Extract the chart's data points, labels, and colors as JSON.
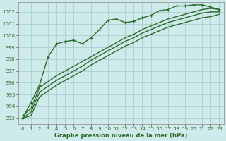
{
  "background_color": "#ceeaea",
  "grid_color": "#aacfcf",
  "line_color": "#2d6b2d",
  "xlabel": "Graphe pression niveau de la mer (hPa)",
  "ylim": [
    992.5,
    1002.8
  ],
  "xlim": [
    -0.5,
    23.5
  ],
  "yticks": [
    993,
    994,
    995,
    996,
    997,
    998,
    999,
    1000,
    1001,
    1002
  ],
  "xticks": [
    0,
    1,
    2,
    3,
    4,
    5,
    6,
    7,
    8,
    9,
    10,
    11,
    12,
    13,
    14,
    15,
    16,
    17,
    18,
    19,
    20,
    21,
    22,
    23
  ],
  "series": [
    {
      "x": [
        0,
        1,
        2,
        3,
        4,
        5,
        6,
        7,
        8,
        9,
        10,
        11,
        12,
        13,
        14,
        15,
        16,
        17,
        18,
        19,
        20,
        21,
        22,
        23
      ],
      "y": [
        993.0,
        994.3,
        995.8,
        998.2,
        999.3,
        999.5,
        999.6,
        999.3,
        999.8,
        1000.5,
        1001.3,
        1001.4,
        1001.1,
        1001.2,
        1001.5,
        1001.7,
        1002.1,
        1002.2,
        1002.5,
        1002.5,
        1002.6,
        1002.6,
        1002.4,
        1002.2
      ],
      "marker": "+",
      "linestyle": "-",
      "linewidth": 1.0,
      "markersize": 3.5
    },
    {
      "x": [
        0,
        1,
        2,
        3,
        4,
        5,
        6,
        7,
        8,
        9,
        10,
        11,
        12,
        13,
        14,
        15,
        16,
        17,
        18,
        19,
        20,
        21,
        22,
        23
      ],
      "y": [
        993.2,
        993.8,
        995.6,
        996.1,
        996.6,
        997.0,
        997.4,
        997.8,
        998.2,
        998.6,
        999.0,
        999.4,
        999.8,
        1000.1,
        1000.5,
        1000.8,
        1001.1,
        1001.4,
        1001.6,
        1001.8,
        1002.0,
        1002.2,
        1002.3,
        1002.2
      ],
      "marker": null,
      "linestyle": "-",
      "linewidth": 1.0,
      "markersize": 0
    },
    {
      "x": [
        0,
        1,
        2,
        3,
        4,
        5,
        6,
        7,
        8,
        9,
        10,
        11,
        12,
        13,
        14,
        15,
        16,
        17,
        18,
        19,
        20,
        21,
        22,
        23
      ],
      "y": [
        993.0,
        993.5,
        995.2,
        995.7,
        996.2,
        996.6,
        997.0,
        997.4,
        997.9,
        998.3,
        998.7,
        999.1,
        999.5,
        999.8,
        1000.2,
        1000.5,
        1000.8,
        1001.1,
        1001.3,
        1001.5,
        1001.7,
        1001.9,
        1002.0,
        1002.0
      ],
      "marker": null,
      "linestyle": "-",
      "linewidth": 1.0,
      "markersize": 0
    },
    {
      "x": [
        0,
        1,
        2,
        3,
        4,
        5,
        6,
        7,
        8,
        9,
        10,
        11,
        12,
        13,
        14,
        15,
        16,
        17,
        18,
        19,
        20,
        21,
        22,
        23
      ],
      "y": [
        993.0,
        993.2,
        994.8,
        995.3,
        995.8,
        996.2,
        996.6,
        997.0,
        997.5,
        997.9,
        998.3,
        998.7,
        999.1,
        999.4,
        999.8,
        1000.1,
        1000.4,
        1000.7,
        1000.9,
        1001.1,
        1001.3,
        1001.5,
        1001.6,
        1001.8
      ],
      "marker": null,
      "linestyle": "-",
      "linewidth": 1.0,
      "markersize": 0
    }
  ]
}
